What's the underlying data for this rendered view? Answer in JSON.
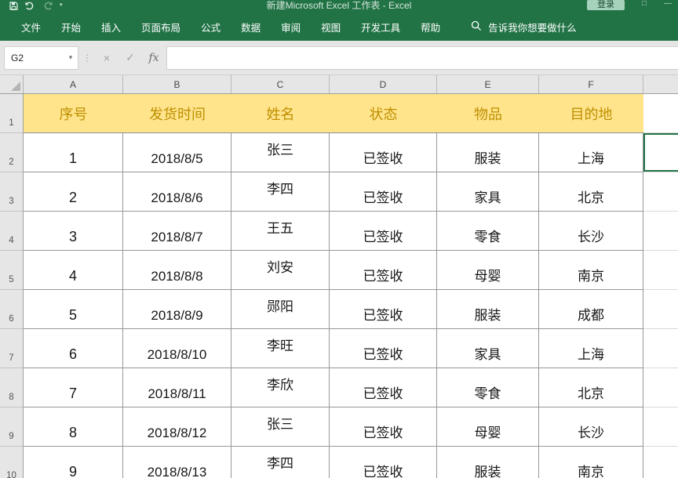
{
  "window": {
    "title": "新建Microsoft Excel 工作表 - Excel",
    "signin_label": "登录"
  },
  "ribbon": {
    "tabs": [
      "文件",
      "开始",
      "插入",
      "页面布局",
      "公式",
      "数据",
      "审阅",
      "视图",
      "开发工具",
      "帮助"
    ],
    "search_placeholder": "告诉我你想要做什么"
  },
  "formula_bar": {
    "name_box_value": "G2",
    "name_box_dropdown_glyph": "▾",
    "separator_glyph": "⋮",
    "cancel_glyph": "×",
    "enter_glyph": "✓",
    "fx_glyph": "fx",
    "formula_value": ""
  },
  "grid": {
    "column_headers": [
      "A",
      "B",
      "C",
      "D",
      "E",
      "F"
    ],
    "row_numbers": [
      "1",
      "2",
      "3",
      "4",
      "5",
      "6",
      "7",
      "8",
      "9",
      "10"
    ],
    "header_row": [
      "序号",
      "发货时间",
      "姓名",
      "状态",
      "物品",
      "目的地"
    ],
    "rows": [
      [
        "1",
        "2018/8/5",
        "张三",
        "已签收",
        "服装",
        "上海"
      ],
      [
        "2",
        "2018/8/6",
        "李四",
        "已签收",
        "家具",
        "北京"
      ],
      [
        "3",
        "2018/8/7",
        "王五",
        "已签收",
        "零食",
        "长沙"
      ],
      [
        "4",
        "2018/8/8",
        "刘安",
        "已签收",
        "母婴",
        "南京"
      ],
      [
        "5",
        "2018/8/9",
        "郧阳",
        "已签收",
        "服装",
        "成都"
      ],
      [
        "6",
        "2018/8/10",
        "李旺",
        "已签收",
        "家具",
        "上海"
      ],
      [
        "7",
        "2018/8/11",
        "李欣",
        "已签收",
        "零食",
        "北京"
      ],
      [
        "8",
        "2018/8/12",
        "张三",
        "已签收",
        "母婴",
        "长沙"
      ],
      [
        "9",
        "2018/8/13",
        "李四",
        "已签收",
        "服装",
        "南京"
      ]
    ],
    "active_cell": "G2"
  },
  "colors": {
    "excel_green": "#217346",
    "header_fill": "#FFE48C",
    "header_text": "#BF8F00"
  }
}
